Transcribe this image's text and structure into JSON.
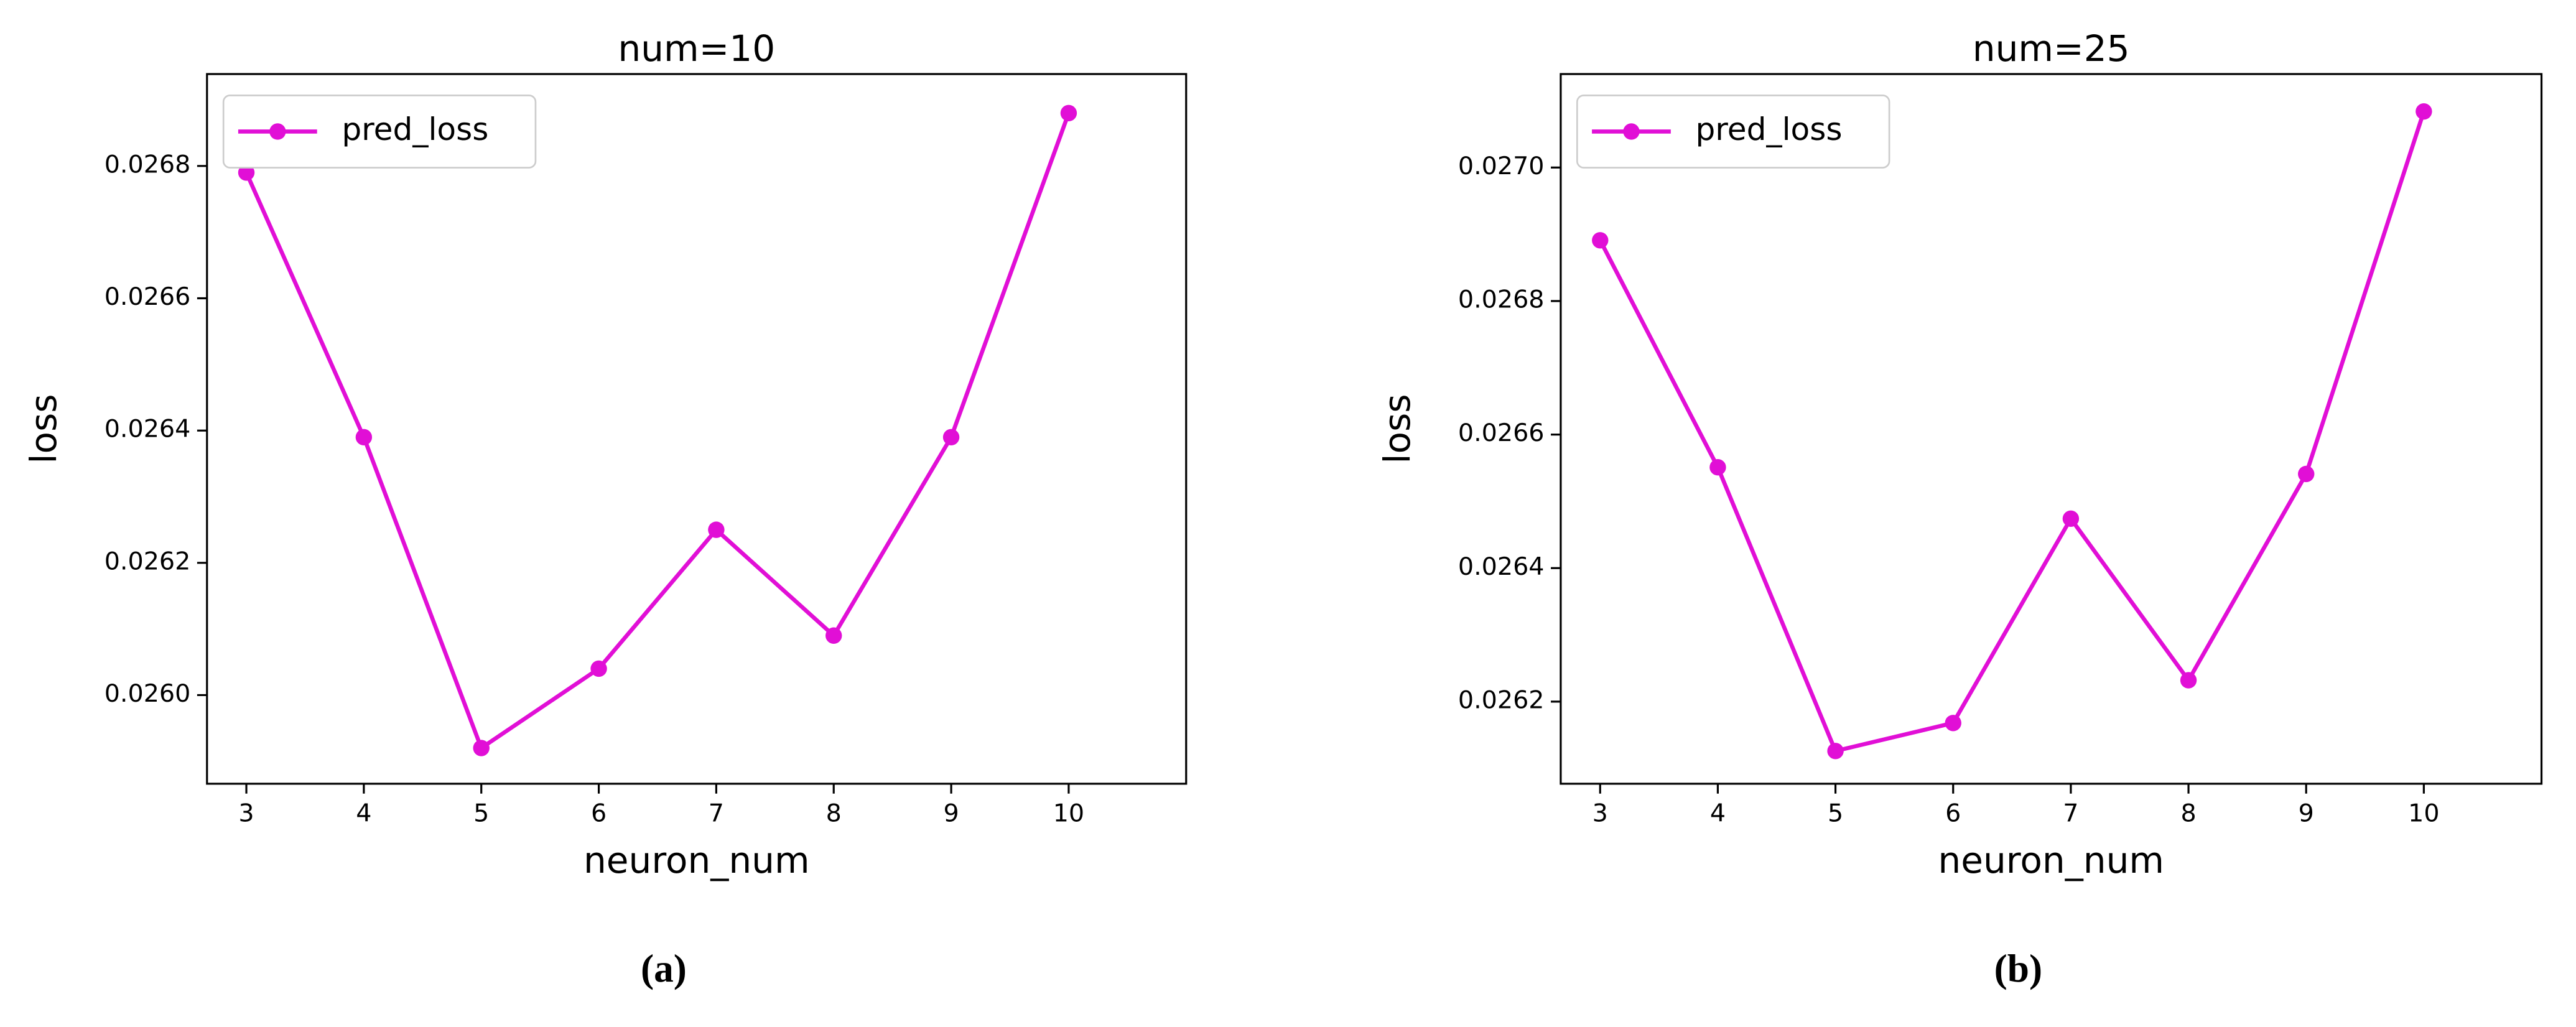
{
  "chart_data": [
    {
      "type": "line",
      "title": "num=10",
      "x_label": "neuron_num",
      "y_label": "loss",
      "caption": "(a)",
      "x": [
        3,
        4,
        5,
        6,
        7,
        8,
        9,
        10
      ],
      "series": [
        {
          "name": "pred_loss",
          "color": "#e10fd6",
          "values": [
            0.02679,
            0.02639,
            0.02592,
            0.02604,
            0.02625,
            0.02609,
            0.02639,
            0.02688
          ]
        }
      ],
      "xlim": [
        2.665,
        11
      ],
      "xticks": [
        3,
        4,
        5,
        6,
        7,
        8,
        9,
        10
      ],
      "ylim": [
        0.025866,
        0.026939
      ],
      "yticks": [
        {
          "value": 0.026,
          "label": "0.0260"
        },
        0.0262,
        0.0264,
        0.0266,
        0.0268
      ],
      "legend": "upper left",
      "grid": false
    },
    {
      "type": "line",
      "title": "num=25",
      "x_label": "neuron_num",
      "y_label": "loss",
      "caption": "(b)",
      "x": [
        3,
        4,
        5,
        6,
        7,
        8,
        9,
        10
      ],
      "series": [
        {
          "name": "pred_loss",
          "color": "#e10fd6",
          "values": [
            0.026891,
            0.026551,
            0.026126,
            0.026168,
            0.026474,
            0.026232,
            0.026541,
            0.027084
          ]
        }
      ],
      "xlim": [
        2.665,
        11
      ],
      "xticks": [
        3,
        4,
        5,
        6,
        7,
        8,
        9,
        10
      ],
      "ylim": [
        0.026077,
        0.02714
      ],
      "yticks": [
        0.0262,
        0.0264,
        0.0266,
        0.0268,
        {
          "value": 0.027,
          "label": "0.0270"
        }
      ],
      "legend": "upper left",
      "grid": false
    }
  ]
}
